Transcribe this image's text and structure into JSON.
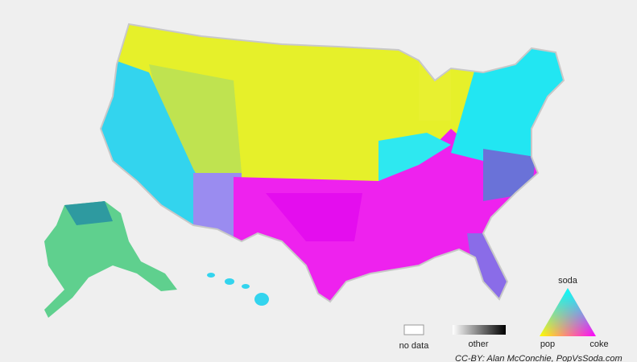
{
  "legend": {
    "no_data": "no data",
    "other": "other",
    "triangle": {
      "top": "soda",
      "left": "pop",
      "right": "coke"
    }
  },
  "credit": "CC-BY: Alan McConchie, PopVsSoda.com"
}
